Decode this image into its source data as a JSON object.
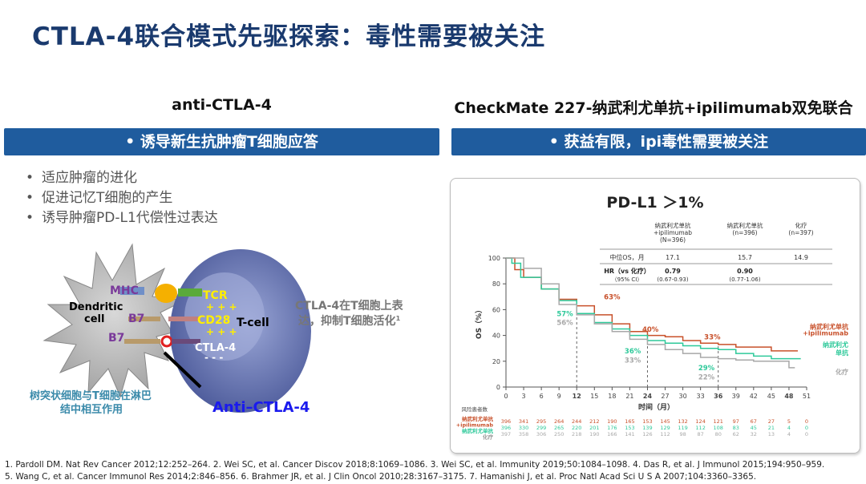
{
  "title": "CTLA-4联合模式先驱探索：毒性需要被关注",
  "left": {
    "heading": "anti-CTLA-4",
    "bar": "• 诱导新生抗肿瘤T细胞应答",
    "bullets": [
      "适应肿瘤的进化",
      "促进记忆T细胞的产生",
      "诱导肿瘤PD-L1代偿性过表达"
    ],
    "diagram": {
      "mhc": "MHC",
      "tcr": "TCR",
      "plus": "+ + +",
      "cd28": "CD28",
      "b7a": "B7",
      "b7b": "B7",
      "ctla4": "CTLA-4",
      "minus": "- - -",
      "dendritic": "Dendritic",
      "cell": "cell",
      "tcell": "T-cell",
      "anti": "Anti–CTLA-4",
      "caption1": "树突状细胞与T细胞在淋巴",
      "caption2": "结中相互作用",
      "note1": "CTLA-4在T细胞上表",
      "note2": "达，抑制T细胞活化",
      "note_sup": "1"
    }
  },
  "right": {
    "heading": "CheckMate 227-纳武利尤单抗+ipilimumab双免联合",
    "bar": "• 获益有限，ipi毒性需要被关注"
  },
  "chart_data": {
    "type": "line",
    "title": "PD-L1 ＞1%",
    "xlabel": "时间（月）",
    "ylabel": "OS（%）",
    "xlim": [
      0,
      51
    ],
    "ylim": [
      0,
      100
    ],
    "xticks": [
      0,
      3,
      6,
      9,
      12,
      15,
      18,
      21,
      24,
      27,
      30,
      33,
      36,
      39,
      42,
      45,
      48,
      51
    ],
    "yticks": [
      0,
      20,
      40,
      60,
      80,
      100
    ],
    "table": {
      "headers": [
        [
          "纳武利尤单抗",
          "+ipilimumab",
          "(N=396)"
        ],
        [
          "纳武利尤单抗",
          "(n=396)"
        ],
        [
          "化疗",
          "(n=397)"
        ]
      ],
      "row1": {
        "label": "中位OS，月",
        "values": [
          "17.1",
          "15.7",
          "14.9"
        ]
      },
      "row2": {
        "label": "HR（vs 化疗）",
        "sub": "（95% CI）",
        "values": [
          "0.79",
          "0.90"
        ],
        "ci": [
          "(0.67-0.93)",
          "(0.77-1.06)"
        ]
      }
    },
    "series": [
      {
        "name": "纳武利尤单抗+ipilimumab",
        "label1": "纳武利尤单抗",
        "label2": "+ipilimumab",
        "color": "#c8502a",
        "x": [
          0,
          1.5,
          3,
          6,
          9,
          12,
          15,
          18,
          21,
          24,
          27,
          30,
          33,
          36,
          39,
          42,
          45,
          48,
          49.5
        ],
        "y": [
          100,
          91,
          85,
          76,
          68,
          63,
          56,
          49,
          43,
          40,
          39,
          36,
          34,
          33,
          31,
          31,
          28,
          28,
          28
        ],
        "annotations": [
          "63%",
          "40%",
          "33%"
        ],
        "risk": [
          "396",
          "341",
          "295",
          "264",
          "244",
          "212",
          "190",
          "165",
          "153",
          "145",
          "132",
          "124",
          "121",
          "97",
          "67",
          "27",
          "5",
          "0"
        ]
      },
      {
        "name": "纳武利尤单抗",
        "label1": "纳武利尤",
        "label2": "单抗",
        "color": "#2ec99a",
        "x": [
          0,
          1,
          2.5,
          6,
          9,
          12,
          15,
          18,
          21,
          24,
          27,
          30,
          33,
          36,
          39,
          42,
          45,
          48,
          50
        ],
        "y": [
          100,
          96,
          85,
          76,
          67,
          57,
          50,
          45,
          40,
          36,
          34,
          32,
          30,
          29,
          26,
          24,
          22,
          22,
          22
        ],
        "annotations": [
          "57%",
          "36%",
          "29%"
        ],
        "risk": [
          "396",
          "330",
          "299",
          "265",
          "220",
          "201",
          "176",
          "153",
          "139",
          "129",
          "119",
          "112",
          "108",
          "83",
          "45",
          "21",
          "4",
          "0"
        ]
      },
      {
        "name": "化疗",
        "label1": "化疗",
        "color": "#a8a8a8",
        "x": [
          0,
          3,
          6,
          9,
          12,
          15,
          18,
          21,
          24,
          27,
          30,
          33,
          36,
          39,
          42,
          45,
          47,
          48,
          49
        ],
        "y": [
          100,
          92,
          80,
          64,
          56,
          49,
          43,
          37,
          33,
          29,
          26,
          23,
          22,
          21,
          20,
          20,
          20,
          15,
          15
        ],
        "annotations": [
          "56%",
          "33%",
          "22%"
        ],
        "risk": [
          "397",
          "358",
          "306",
          "250",
          "218",
          "190",
          "166",
          "141",
          "126",
          "112",
          "98",
          "87",
          "80",
          "62",
          "32",
          "13",
          "4",
          "0"
        ]
      }
    ],
    "risk_title": "风险患者数",
    "risk_labels": [
      "纳武利尤单抗",
      "+ipilimumab",
      "纳武利尤单抗",
      "化疗"
    ]
  },
  "refs": [
    "1. Pardoll DM. Nat Rev Cancer 2012;12:252–264. 2. Wei SC, et al. Cancer Discov 2018;8:1069–1086. 3. Wei SC, et al. Immunity 2019;50:1084–1098.  4. Das R, et al. J Immunol 2015;194:950–959.",
    "5. Wang C, et al. Cancer Immunol Res 2014;2:846–856. 6. Brahmer JR, et al. J Clin Oncol 2010;28:3167–3175. 7. Hamanishi J, et al. Proc Natl Acad Sci U S A 2007;104:3360–3365."
  ]
}
